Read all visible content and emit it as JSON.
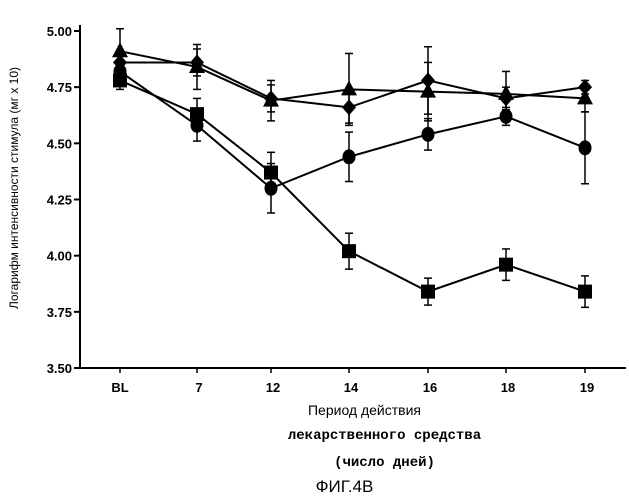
{
  "chart_data": {
    "type": "line",
    "title": "",
    "xlabel": "Период действия лекарственного средства (число дней)",
    "ylabel": "Логарифм интенсивности стимула (мг x 10)",
    "categories": [
      "BL",
      "7",
      "12",
      "14",
      "16",
      "18",
      "19"
    ],
    "ylim": [
      3.5,
      5.0
    ],
    "yticks": [
      "3.50",
      "3.75",
      "4.00",
      "4.25",
      "4.50",
      "4.75",
      "5.00"
    ],
    "grid": false,
    "series": [
      {
        "marker": "square",
        "values": [
          4.78,
          4.63,
          4.37,
          4.02,
          3.84,
          3.96,
          3.84
        ],
        "errors": [
          0.04,
          0.07,
          0.09,
          0.08,
          0.06,
          0.07,
          0.07
        ]
      },
      {
        "marker": "circle",
        "values": [
          4.82,
          4.58,
          4.3,
          4.44,
          4.54,
          4.62,
          4.48
        ],
        "errors": [
          0.05,
          0.07,
          0.11,
          0.11,
          0.07,
          0.04,
          0.16
        ]
      },
      {
        "marker": "triangle",
        "values": [
          4.91,
          4.84,
          4.69,
          4.74,
          4.73,
          4.72,
          4.7
        ],
        "errors": [
          0.1,
          0.1,
          0.09,
          0.16,
          0.13,
          0.1,
          0.06
        ]
      },
      {
        "marker": "diamond",
        "values": [
          4.86,
          4.86,
          4.7,
          4.66,
          4.78,
          4.7,
          4.75
        ],
        "errors": [
          0.05,
          0.06,
          0.06,
          0.07,
          0.15,
          0.05,
          0.03
        ]
      }
    ]
  },
  "labels": {
    "ylabel": "Логарифм интенсивности стимула (мг x 10)",
    "xlabel_line1": "Период действия",
    "xlabel_line2": "лекарственного средства",
    "xlabel_line3": "(число дней)",
    "figure_caption": "ФИГ.4В"
  }
}
